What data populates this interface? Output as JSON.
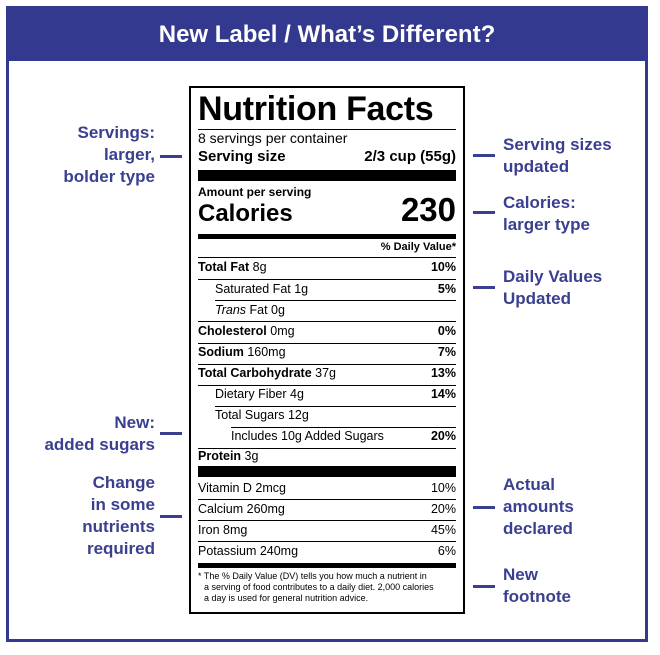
{
  "banner": {
    "title": "New Label / What’s Different?"
  },
  "callouts": {
    "servings": "Servings: larger, bolder type",
    "serving_sizes": "Serving sizes updated",
    "calories": "Calories: larger type",
    "daily_values": "Daily Values Updated",
    "added_sugars": "New: added sugars",
    "nutrients": "Change in some nutrients required",
    "actual_amounts": "Actual amounts declared",
    "footnote": "New footnote"
  },
  "callout_lines": {
    "servings": [
      "Servings:",
      "larger,",
      "bolder type"
    ],
    "serving_sizes": [
      "Serving sizes",
      "updated"
    ],
    "calories": [
      "Calories:",
      "larger type"
    ],
    "daily_values": [
      "Daily Values",
      "Updated"
    ],
    "added_sugars": [
      "New:",
      "added sugars"
    ],
    "nutrients": [
      "Change",
      "in some",
      "nutrients",
      "required"
    ],
    "actual_amounts": [
      "Actual",
      "amounts",
      "declared"
    ],
    "footnote": [
      "New",
      "footnote"
    ]
  },
  "label": {
    "title": "Nutrition Facts",
    "servings_per_container": "8 servings per container",
    "serving_size_label": "Serving size",
    "serving_size_value": "2/3 cup (55g)",
    "amount_per_serving": "Amount per serving",
    "calories_label": "Calories",
    "calories_value": "230",
    "dv_header": "% Daily Value*",
    "rows": [
      {
        "name": "Total Fat",
        "amount": "8g",
        "dv": "10%"
      },
      {
        "name": "Saturated Fat",
        "amount": "1g",
        "dv": "5%"
      },
      {
        "name": "Trans",
        "amount": "Fat 0g",
        "dv": ""
      },
      {
        "name": "Cholesterol",
        "amount": "0mg",
        "dv": "0%"
      },
      {
        "name": "Sodium",
        "amount": "160mg",
        "dv": "7%"
      },
      {
        "name": "Total Carbohydrate",
        "amount": "37g",
        "dv": "13%"
      },
      {
        "name": "Dietary Fiber",
        "amount": "4g",
        "dv": "14%"
      },
      {
        "name": "Total Sugars",
        "amount": "12g",
        "dv": ""
      },
      {
        "name": "Includes 10g Added Sugars",
        "amount": "",
        "dv": "20%"
      },
      {
        "name": "Protein",
        "amount": "3g",
        "dv": ""
      }
    ],
    "vitamins": [
      {
        "name": "Vitamin D 2mcg",
        "dv": "10%"
      },
      {
        "name": "Calcium 260mg",
        "dv": "20%"
      },
      {
        "name": "Iron 8mg",
        "dv": "45%"
      },
      {
        "name": "Potassium 240mg",
        "dv": "6%"
      }
    ],
    "footnote": "* The % Daily Value (DV) tells you how much a nutrient in a serving of food contributes to a daily diet. 2,000 calories a day is used for general nutrition advice.",
    "footnote_lines": [
      "* The % Daily Value (DV) tells you how much a nutrient in",
      "a serving of food contributes to a daily diet. 2,000 calories",
      "a day is used for general nutrition advice."
    ]
  },
  "colors": {
    "accent": "#33398e",
    "callout_text": "#3a3f90"
  }
}
